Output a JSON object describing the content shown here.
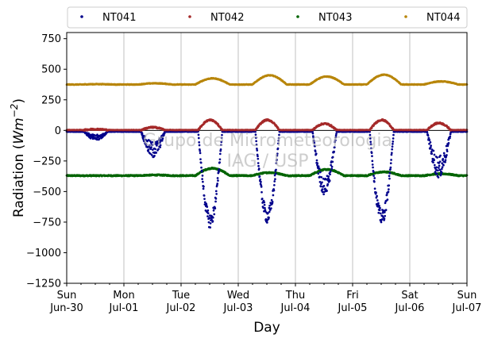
{
  "chart_data": {
    "type": "scatter",
    "title": "",
    "xlabel": "Day",
    "ylabel_main": "Radiation (",
    "ylabel_unit": "Wm",
    "ylabel_exp": "−2",
    "ylabel_close": ")",
    "ylim": [
      -1250,
      800
    ],
    "yticks": [
      750,
      500,
      250,
      0,
      -250,
      -500,
      -750,
      -1000,
      -1250
    ],
    "ytick_labels": [
      "750",
      "500",
      "250",
      "0",
      "−250",
      "−500",
      "−750",
      "−1000",
      "−1250"
    ],
    "xlim": [
      "2024-06-30",
      "2024-07-07"
    ],
    "xticks": [
      {
        "day": "Sun",
        "date": "Jun-30"
      },
      {
        "day": "Mon",
        "date": "Jul-01"
      },
      {
        "day": "Tue",
        "date": "Jul-02"
      },
      {
        "day": "Wed",
        "date": "Jul-03"
      },
      {
        "day": "Thu",
        "date": "Jul-04"
      },
      {
        "day": "Fri",
        "date": "Jul-05"
      },
      {
        "day": "Sat",
        "date": "Jul-06"
      },
      {
        "day": "Sun",
        "date": "Jul-07"
      }
    ],
    "grid": "vertical at day boundaries",
    "legend_position": "top, above plot",
    "watermark": [
      "Grupo de Micrometeorologia",
      "IAG / USP"
    ],
    "series": [
      {
        "name": "NT041",
        "color": "#00008b",
        "baseline": -10,
        "daily_minimum": [
          -60,
          -160,
          -740,
          -700,
          -460,
          -710,
          -300
        ],
        "daily_noise": [
          25,
          70,
          60,
          60,
          70,
          60,
          90
        ]
      },
      {
        "name": "NT042",
        "color": "#a52a2a",
        "baseline": 3,
        "daily_maximum": [
          10,
          25,
          85,
          85,
          55,
          85,
          60
        ]
      },
      {
        "name": "NT043",
        "color": "#006400",
        "night_level": -370,
        "daily_maximum": [
          -370,
          -365,
          -310,
          -345,
          -320,
          -340,
          -355
        ]
      },
      {
        "name": "NT044",
        "color": "#b8860b",
        "night_level": 375,
        "daily_maximum": [
          378,
          385,
          425,
          450,
          440,
          455,
          400
        ]
      }
    ]
  }
}
